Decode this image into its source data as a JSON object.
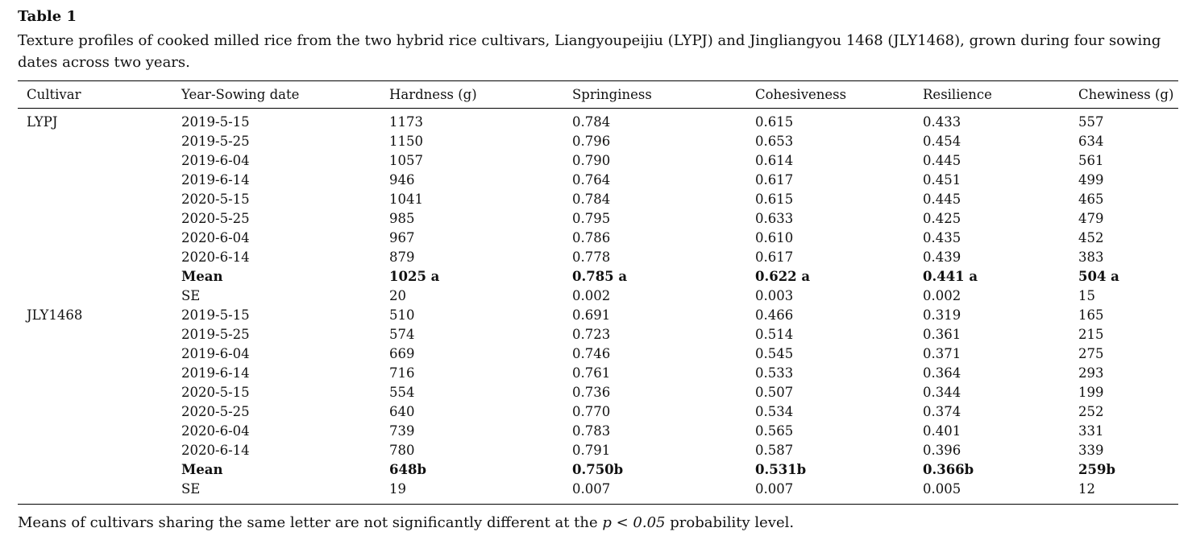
{
  "page": {
    "title": "Table 1",
    "caption": "Texture profiles of cooked milled rice from the two hybrid rice cultivars, Liangyoupeijiu (LYPJ) and Jingliangyou 1468 (JLY1468), grown during four sowing dates across two years."
  },
  "table": {
    "columns": [
      "Cultivar",
      "Year-Sowing date",
      "Hardness (g)",
      "Springiness",
      "Cohesiveness",
      "Resilience",
      "Chewiness (g)"
    ],
    "column_keys": [
      "cultivar",
      "year-sowing-date",
      "hardness",
      "springiness",
      "cohesiveness",
      "resilience",
      "chewiness"
    ],
    "rows": [
      {
        "cells": [
          "LYPJ",
          "2019-5-15",
          "1173",
          "0.784",
          "0.615",
          "0.433",
          "557"
        ],
        "bold": false
      },
      {
        "cells": [
          "",
          "2019-5-25",
          "1150",
          "0.796",
          "0.653",
          "0.454",
          "634"
        ],
        "bold": false
      },
      {
        "cells": [
          "",
          "2019-6-04",
          "1057",
          "0.790",
          "0.614",
          "0.445",
          "561"
        ],
        "bold": false
      },
      {
        "cells": [
          "",
          "2019-6-14",
          "946",
          "0.764",
          "0.617",
          "0.451",
          "499"
        ],
        "bold": false
      },
      {
        "cells": [
          "",
          "2020-5-15",
          "1041",
          "0.784",
          "0.615",
          "0.445",
          "465"
        ],
        "bold": false
      },
      {
        "cells": [
          "",
          "2020-5-25",
          "985",
          "0.795",
          "0.633",
          "0.425",
          "479"
        ],
        "bold": false
      },
      {
        "cells": [
          "",
          "2020-6-04",
          "967",
          "0.786",
          "0.610",
          "0.435",
          "452"
        ],
        "bold": false
      },
      {
        "cells": [
          "",
          "2020-6-14",
          "879",
          "0.778",
          "0.617",
          "0.439",
          "383"
        ],
        "bold": false
      },
      {
        "cells": [
          "",
          "Mean",
          "1025 a",
          "0.785 a",
          "0.622 a",
          "0.441 a",
          "504 a"
        ],
        "bold": true
      },
      {
        "cells": [
          "",
          "SE",
          "20",
          "0.002",
          "0.003",
          "0.002",
          "15"
        ],
        "bold": false
      },
      {
        "cells": [
          "JLY1468",
          "2019-5-15",
          "510",
          "0.691",
          "0.466",
          "0.319",
          "165"
        ],
        "bold": false
      },
      {
        "cells": [
          "",
          "2019-5-25",
          "574",
          "0.723",
          "0.514",
          "0.361",
          "215"
        ],
        "bold": false
      },
      {
        "cells": [
          "",
          "2019-6-04",
          "669",
          "0.746",
          "0.545",
          "0.371",
          "275"
        ],
        "bold": false
      },
      {
        "cells": [
          "",
          "2019-6-14",
          "716",
          "0.761",
          "0.533",
          "0.364",
          "293"
        ],
        "bold": false
      },
      {
        "cells": [
          "",
          "2020-5-15",
          "554",
          "0.736",
          "0.507",
          "0.344",
          "199"
        ],
        "bold": false
      },
      {
        "cells": [
          "",
          "2020-5-25",
          "640",
          "0.770",
          "0.534",
          "0.374",
          "252"
        ],
        "bold": false
      },
      {
        "cells": [
          "",
          "2020-6-04",
          "739",
          "0.783",
          "0.565",
          "0.401",
          "331"
        ],
        "bold": false
      },
      {
        "cells": [
          "",
          "2020-6-14",
          "780",
          "0.791",
          "0.587",
          "0.396",
          "339"
        ],
        "bold": false
      },
      {
        "cells": [
          "",
          "Mean",
          "648b",
          "0.750b",
          "0.531b",
          "0.366b",
          "259b"
        ],
        "bold": true
      },
      {
        "cells": [
          "",
          "SE",
          "19",
          "0.007",
          "0.007",
          "0.005",
          "12"
        ],
        "bold": false
      }
    ]
  },
  "footnote": {
    "prefix": "Means of cultivars sharing the same letter are not significantly different at the ",
    "italic": "p < 0.05",
    "suffix": " probability level."
  },
  "colors": {
    "text": "#111111",
    "background": "#ffffff",
    "rule": "#000000"
  }
}
